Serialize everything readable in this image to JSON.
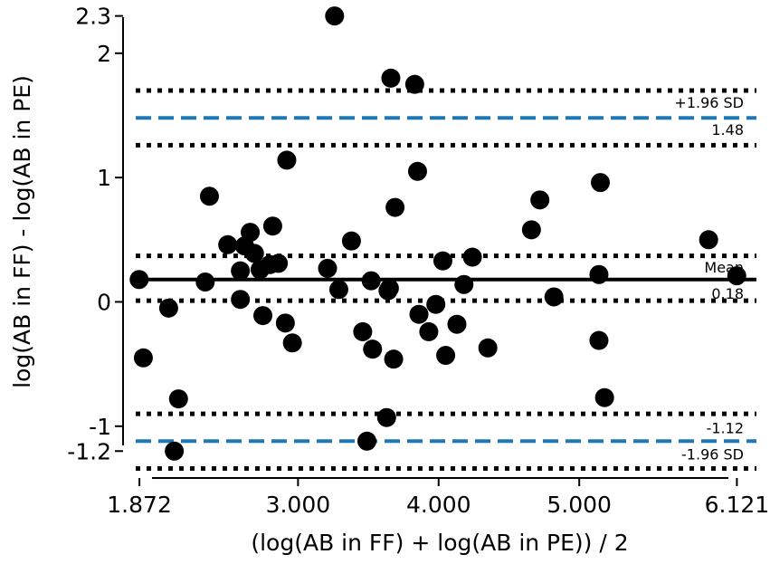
{
  "chart_data": {
    "type": "scatter",
    "title": "",
    "xlabel": "(log(AB in FF) + log(AB in PE)) / 2",
    "ylabel": "log(AB in FF) - log(AB in PE)",
    "xlim": [
      1.82,
      6.26
    ],
    "ylim": [
      -1.3,
      2.37
    ],
    "xticks": [
      {
        "value": 1.872,
        "label": "1.872"
      },
      {
        "value": 3.0,
        "label": "3.000"
      },
      {
        "value": 4.0,
        "label": "4.000"
      },
      {
        "value": 5.0,
        "label": "5.000"
      },
      {
        "value": 6.121,
        "label": "6.121"
      }
    ],
    "yticks": [
      {
        "value": 2.3,
        "label": "2.3"
      },
      {
        "value": 2.0,
        "label": "2"
      },
      {
        "value": 1.0,
        "label": "1"
      },
      {
        "value": 0.0,
        "label": "0"
      },
      {
        "value": -1.0,
        "label": "-1"
      },
      {
        "value": -1.2,
        "label": "-1.2"
      }
    ],
    "grid": false,
    "lines": {
      "mean": {
        "value": 0.18,
        "label": "Mean",
        "value_label": "0.18",
        "color": "#000000"
      },
      "upper_loa": {
        "value": 1.48,
        "label": "+1.96 SD",
        "value_label": "1.48",
        "color": "#1f77b4"
      },
      "lower_loa": {
        "value": -1.12,
        "label": "-1.96 SD",
        "value_label": "-1.12",
        "color": "#1f77b4"
      },
      "ci_bounds": [
        1.7,
        1.26,
        0.37,
        0.01,
        -0.9,
        -1.34
      ]
    },
    "points": [
      {
        "x": 1.87,
        "y": 0.18
      },
      {
        "x": 1.9,
        "y": -0.45
      },
      {
        "x": 2.08,
        "y": -0.05
      },
      {
        "x": 2.12,
        "y": -1.2
      },
      {
        "x": 2.15,
        "y": -0.78
      },
      {
        "x": 2.34,
        "y": 0.16
      },
      {
        "x": 2.37,
        "y": 0.85
      },
      {
        "x": 2.5,
        "y": 0.46
      },
      {
        "x": 2.59,
        "y": 0.25
      },
      {
        "x": 2.59,
        "y": 0.02
      },
      {
        "x": 2.62,
        "y": 0.45
      },
      {
        "x": 2.66,
        "y": 0.56
      },
      {
        "x": 2.69,
        "y": 0.39
      },
      {
        "x": 2.73,
        "y": 0.26
      },
      {
        "x": 2.75,
        "y": -0.11
      },
      {
        "x": 2.8,
        "y": 0.3
      },
      {
        "x": 2.82,
        "y": 0.61
      },
      {
        "x": 2.86,
        "y": 0.31
      },
      {
        "x": 2.91,
        "y": -0.17
      },
      {
        "x": 2.92,
        "y": 1.14
      },
      {
        "x": 2.96,
        "y": -0.33
      },
      {
        "x": 3.21,
        "y": 0.27
      },
      {
        "x": 3.26,
        "y": 2.3
      },
      {
        "x": 3.29,
        "y": 0.1
      },
      {
        "x": 3.38,
        "y": 0.49
      },
      {
        "x": 3.46,
        "y": -0.24
      },
      {
        "x": 3.49,
        "y": -1.12
      },
      {
        "x": 3.52,
        "y": 0.17
      },
      {
        "x": 3.53,
        "y": -0.38
      },
      {
        "x": 3.63,
        "y": -0.93
      },
      {
        "x": 3.64,
        "y": 0.09
      },
      {
        "x": 3.65,
        "y": 0.11
      },
      {
        "x": 3.66,
        "y": 1.8
      },
      {
        "x": 3.68,
        "y": -0.46
      },
      {
        "x": 3.69,
        "y": 0.76
      },
      {
        "x": 3.83,
        "y": 1.75
      },
      {
        "x": 3.85,
        "y": 1.05
      },
      {
        "x": 3.86,
        "y": -0.1
      },
      {
        "x": 3.93,
        "y": -0.24
      },
      {
        "x": 3.98,
        "y": -0.02
      },
      {
        "x": 4.03,
        "y": 0.33
      },
      {
        "x": 4.05,
        "y": -0.43
      },
      {
        "x": 4.13,
        "y": -0.18
      },
      {
        "x": 4.18,
        "y": 0.14
      },
      {
        "x": 4.24,
        "y": 0.36
      },
      {
        "x": 4.35,
        "y": -0.37
      },
      {
        "x": 4.66,
        "y": 0.58
      },
      {
        "x": 4.72,
        "y": 0.82
      },
      {
        "x": 4.82,
        "y": 0.04
      },
      {
        "x": 5.14,
        "y": -0.31
      },
      {
        "x": 5.14,
        "y": 0.22
      },
      {
        "x": 5.15,
        "y": 0.96
      },
      {
        "x": 5.18,
        "y": -0.77
      },
      {
        "x": 5.92,
        "y": 0.5
      },
      {
        "x": 6.12,
        "y": 0.21
      }
    ]
  }
}
